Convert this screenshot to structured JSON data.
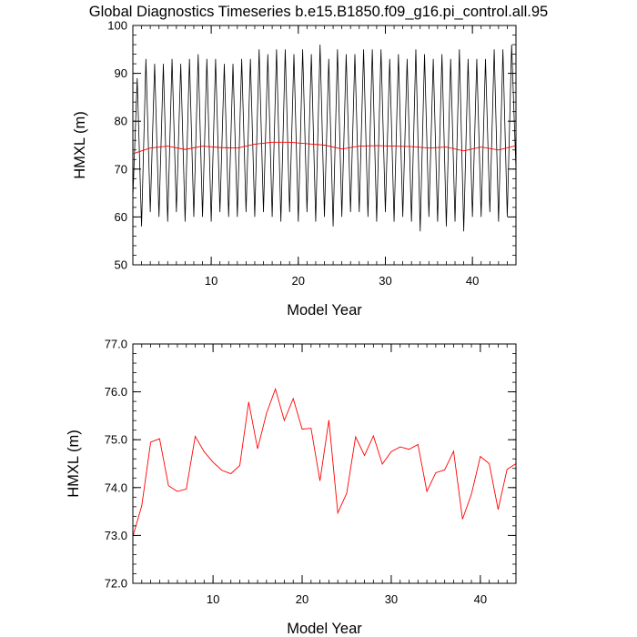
{
  "title": "Global Diagnostics Timeseries b.e15.B1850.f09_g16.pi_control.all.95",
  "colors": {
    "monthly": "#000000",
    "annual": "#ff0000",
    "axes": "#000000"
  },
  "chart_data": [
    {
      "type": "line",
      "xlabel": "Model Year",
      "ylabel": "HMXL (m)",
      "xlim": [
        1,
        45
      ],
      "ylim": [
        50,
        100
      ],
      "xticks": [
        10,
        20,
        30,
        40
      ],
      "xtick_labels": [
        "10",
        "20",
        "30",
        "40"
      ],
      "yticks": [
        50,
        60,
        70,
        80,
        90,
        100
      ],
      "ytick_labels": [
        "50",
        "60",
        "70",
        "80",
        "90",
        "100"
      ],
      "series": [
        {
          "color": "#000000",
          "x": [
            1.0,
            1.5,
            2.0,
            2.5,
            3.0,
            3.5,
            4.0,
            4.5,
            5.0,
            5.5,
            6.0,
            6.5,
            7.0,
            7.5,
            8.0,
            8.5,
            9.0,
            9.5,
            10.0,
            10.5,
            11.0,
            11.5,
            12.0,
            12.5,
            13.0,
            13.5,
            14.0,
            14.5,
            15.0,
            15.5,
            16.0,
            16.5,
            17.0,
            17.5,
            18.0,
            18.5,
            19.0,
            19.5,
            20.0,
            20.5,
            21.0,
            21.5,
            22.0,
            22.5,
            23.0,
            23.5,
            24.0,
            24.5,
            25.0,
            25.5,
            26.0,
            26.5,
            27.0,
            27.5,
            28.0,
            28.5,
            29.0,
            29.5,
            30.0,
            30.5,
            31.0,
            31.5,
            32.0,
            32.5,
            33.0,
            33.5,
            34.0,
            34.5,
            35.0,
            35.5,
            36.0,
            36.5,
            37.0,
            37.5,
            38.0,
            38.5,
            39.0,
            39.5,
            40.0,
            40.5,
            41.0,
            41.5,
            42.0,
            42.5,
            43.0,
            43.5,
            44.0,
            44.5,
            45.0
          ],
          "y": [
            64,
            89,
            58,
            93,
            61,
            92,
            60,
            92,
            59,
            93,
            61,
            92,
            59,
            93,
            60,
            94,
            60,
            93,
            59,
            93,
            61,
            92,
            60,
            92,
            60,
            93,
            61,
            93,
            60,
            95,
            61,
            94,
            60,
            95,
            59,
            95,
            61,
            94,
            59,
            95,
            61,
            94,
            59,
            96,
            60,
            93,
            58,
            95,
            60,
            94,
            61,
            94,
            61,
            95,
            60,
            95,
            59,
            95,
            61,
            93,
            59,
            94,
            60,
            93,
            59,
            95,
            57,
            94,
            60,
            93,
            59,
            94,
            58,
            93,
            59,
            95,
            57,
            93,
            60,
            93,
            60,
            93,
            61,
            95,
            59,
            95,
            60,
            96,
            70
          ]
        },
        {
          "color": "#ff0000",
          "x": [
            1,
            3,
            5,
            7,
            9,
            11,
            13,
            15,
            17,
            19,
            21,
            23,
            25,
            27,
            29,
            31,
            33,
            35,
            37,
            39,
            41,
            43,
            45
          ],
          "y": [
            73.2,
            74.4,
            74.8,
            74.1,
            74.8,
            74.5,
            74.4,
            75.2,
            75.6,
            75.6,
            75.3,
            75.0,
            74.2,
            74.8,
            74.9,
            74.8,
            74.7,
            74.4,
            74.6,
            73.8,
            74.6,
            74.0,
            74.9
          ]
        }
      ]
    },
    {
      "type": "line",
      "xlabel": "Model Year",
      "ylabel": "HMXL (m)",
      "xlim": [
        1,
        44
      ],
      "ylim": [
        72.0,
        77.0
      ],
      "xticks": [
        10,
        20,
        30,
        40
      ],
      "xtick_labels": [
        "10",
        "20",
        "30",
        "40"
      ],
      "yticks": [
        72,
        73,
        74,
        75,
        76,
        77
      ],
      "ytick_labels": [
        "72.0",
        "73.0",
        "74.0",
        "75.0",
        "76.0",
        "77.0"
      ],
      "series": [
        {
          "color": "#ff0000",
          "x": [
            1,
            2,
            3,
            4,
            5,
            6,
            7,
            8,
            9,
            10,
            11,
            12,
            13,
            14,
            15,
            16,
            17,
            18,
            19,
            20,
            21,
            22,
            23,
            24,
            25,
            26,
            27,
            28,
            29,
            30,
            31,
            32,
            33,
            34,
            35,
            36,
            37,
            38,
            39,
            40,
            41,
            42,
            43,
            44
          ],
          "y": [
            72.98,
            73.62,
            74.95,
            75.02,
            74.04,
            73.92,
            73.97,
            75.07,
            74.75,
            74.53,
            74.36,
            74.29,
            74.46,
            75.79,
            74.81,
            75.55,
            76.06,
            75.4,
            75.86,
            75.22,
            75.24,
            74.14,
            75.41,
            73.47,
            73.88,
            75.06,
            74.67,
            75.08,
            74.49,
            74.75,
            74.85,
            74.8,
            74.9,
            73.92,
            74.31,
            74.37,
            74.76,
            73.34,
            73.86,
            74.65,
            74.5,
            73.54,
            74.38,
            74.5
          ]
        }
      ]
    }
  ]
}
